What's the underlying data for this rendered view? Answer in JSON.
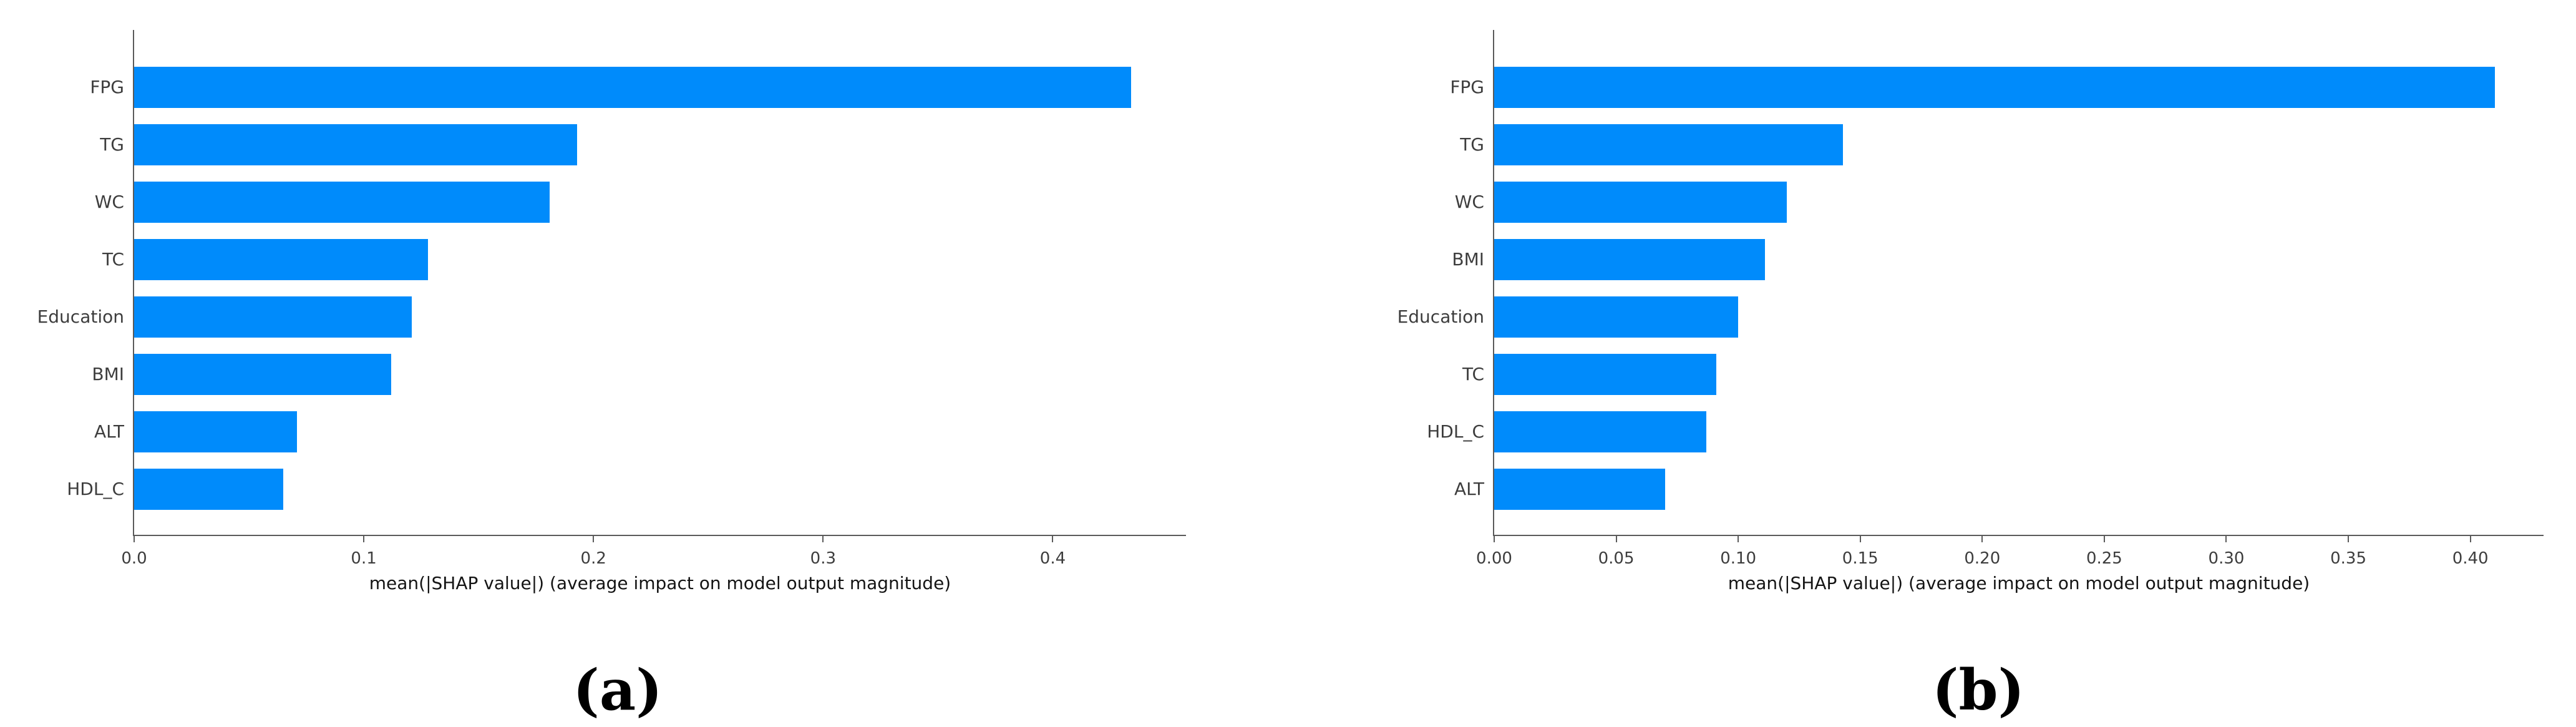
{
  "figure": {
    "background_color": "#ffffff",
    "captions": [
      "(a)",
      "(b)"
    ]
  },
  "chart_data": [
    {
      "type": "bar",
      "orientation": "horizontal",
      "panel": "a",
      "caption": "(a)",
      "categories": [
        "FPG",
        "TG",
        "WC",
        "TC",
        "Education",
        "BMI",
        "ALT",
        "HDL_C"
      ],
      "values": [
        0.434,
        0.193,
        0.181,
        0.128,
        0.121,
        0.112,
        0.071,
        0.065
      ],
      "xlabel": "mean(|SHAP value|) (average impact on model output magnitude)",
      "ylabel": "",
      "xlim": [
        0,
        0.458
      ],
      "xtick_values": [
        0.0,
        0.1,
        0.2,
        0.3,
        0.4
      ],
      "xtick_labels": [
        "0.0",
        "0.1",
        "0.2",
        "0.3",
        "0.4"
      ],
      "bar_color": "#008bfb",
      "grid": false,
      "legend_position": "none"
    },
    {
      "type": "bar",
      "orientation": "horizontal",
      "panel": "b",
      "caption": "(b)",
      "categories": [
        "FPG",
        "TG",
        "WC",
        "BMI",
        "Education",
        "TC",
        "HDL_C",
        "ALT"
      ],
      "values": [
        0.41,
        0.143,
        0.12,
        0.111,
        0.1,
        0.091,
        0.087,
        0.07
      ],
      "xlabel": "mean(|SHAP value|) (average impact on model output magnitude)",
      "ylabel": "",
      "xlim": [
        0,
        0.43
      ],
      "xtick_values": [
        0.0,
        0.05,
        0.1,
        0.15,
        0.2,
        0.25,
        0.3,
        0.35,
        0.4
      ],
      "xtick_labels": [
        "0.00",
        "0.05",
        "0.10",
        "0.15",
        "0.20",
        "0.25",
        "0.30",
        "0.35",
        "0.40"
      ],
      "bar_color": "#008bfb",
      "grid": false,
      "legend_position": "none"
    }
  ]
}
